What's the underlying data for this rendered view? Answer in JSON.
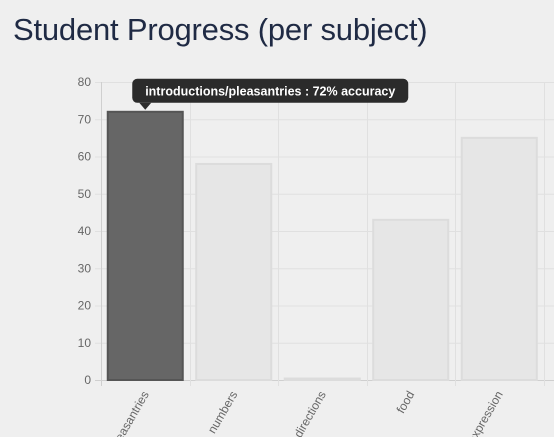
{
  "page": {
    "title": "Student Progress (per subject)"
  },
  "chart_data": {
    "type": "bar",
    "categories": [
      "introductions/pleasantries",
      "numbers",
      "directions",
      "food",
      "expression"
    ],
    "tick_labels": [
      "pleasantries",
      "numbers",
      "directions",
      "food",
      "expression"
    ],
    "values": [
      72,
      58,
      0,
      43,
      65
    ],
    "ylim": [
      0,
      80
    ],
    "yticks": [
      0,
      10,
      20,
      30,
      40,
      50,
      60,
      70,
      80
    ],
    "title": "",
    "xlabel": "",
    "ylabel": "",
    "grid": true,
    "highlighted_index": 0,
    "tooltip": "introductions/pleasantries : 72% accuracy",
    "colors": {
      "bar": "#e6e6e6",
      "bar_border": "#dcdcdc",
      "bar_highlight": "#666666",
      "bar_highlight_border": "#555555",
      "grid": "#e0e0e0",
      "tooltip_bg": "#2b2b2b"
    }
  }
}
